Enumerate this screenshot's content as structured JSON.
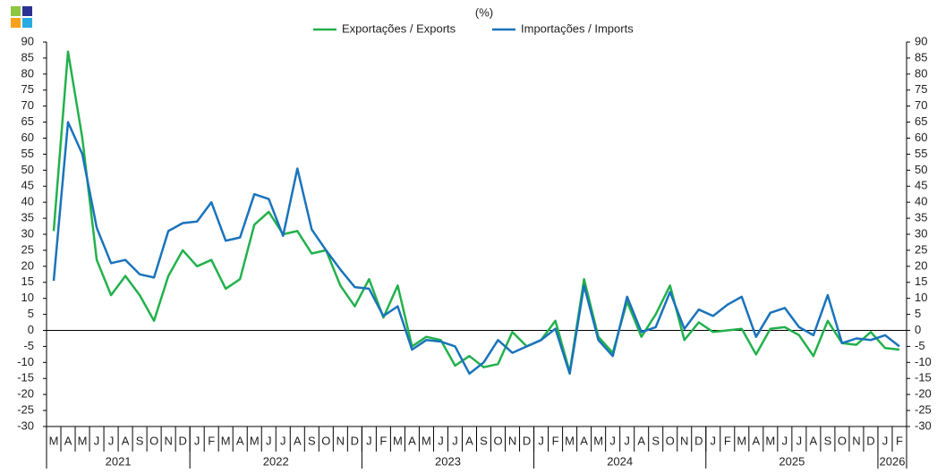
{
  "chart_data": {
    "type": "line",
    "title": "(%)",
    "groups": [
      {
        "label": "2021",
        "categories": [
          "M",
          "A",
          "M",
          "J",
          "J",
          "A",
          "S",
          "O",
          "N",
          "D"
        ]
      },
      {
        "label": "2022",
        "categories": [
          "J",
          "F",
          "M",
          "A",
          "M",
          "J",
          "J",
          "A",
          "S",
          "O",
          "N",
          "D"
        ]
      },
      {
        "label": "2023",
        "categories": [
          "J",
          "F",
          "M",
          "A",
          "M",
          "J",
          "J",
          "A",
          "S",
          "O",
          "N",
          "D"
        ]
      },
      {
        "label": "2024",
        "categories": [
          "J",
          "F",
          "M",
          "A",
          "M",
          "J",
          "J",
          "A",
          "S",
          "O",
          "N",
          "D"
        ]
      },
      {
        "label": "2025",
        "categories": [
          "J",
          "F",
          "M",
          "A",
          "M",
          "J",
          "J",
          "A",
          "S",
          "O",
          "N",
          "D"
        ]
      },
      {
        "label": "2026",
        "categories": [
          "J",
          "F"
        ]
      }
    ],
    "series": [
      {
        "name": "Exportações / Exports",
        "color": "#22b14c",
        "values": [
          31,
          87,
          60,
          22,
          11,
          17,
          11,
          3,
          17,
          25,
          20,
          22,
          13,
          16,
          33,
          37,
          30,
          31,
          24,
          25,
          14,
          7.5,
          16,
          4,
          14,
          -5,
          -2,
          -3,
          -11,
          -8,
          -11.5,
          -10.5,
          -0.5,
          -5,
          -3,
          3,
          -13,
          16,
          -2,
          -7,
          9,
          -2,
          5,
          14,
          -3,
          2.5,
          -0.5,
          0,
          0.5,
          -7.5,
          0.5,
          1,
          -1.5,
          -8,
          3,
          -4,
          -4.5,
          -0.5,
          -5.5,
          -6
        ]
      },
      {
        "name": "Importações / Imports",
        "color": "#1a73bb",
        "values": [
          15.5,
          65,
          55,
          32,
          21,
          22,
          17.5,
          16.5,
          31,
          33.5,
          34,
          40,
          28,
          29,
          42.5,
          41,
          29.5,
          50.5,
          31.5,
          25,
          19,
          13.5,
          13,
          4.5,
          7.5,
          -6,
          -3,
          -3.5,
          -5,
          -13.5,
          -10,
          -3,
          -7,
          -5,
          -3,
          0.5,
          -13.5,
          14,
          -3,
          -8,
          10.5,
          -0.5,
          1,
          12,
          0.5,
          6.5,
          4.5,
          8,
          10.5,
          -2,
          5.5,
          7,
          1,
          -1.5,
          11,
          -4,
          -2.5,
          -3,
          -1.5,
          -5
        ]
      }
    ],
    "ylim": [
      -30,
      90
    ],
    "yticks": [
      -30,
      -25,
      -20,
      -15,
      -10,
      -5,
      0,
      5,
      10,
      15,
      20,
      25,
      30,
      35,
      40,
      45,
      50,
      55,
      60,
      65,
      70,
      75,
      80,
      85,
      90
    ],
    "legend": "top"
  }
}
